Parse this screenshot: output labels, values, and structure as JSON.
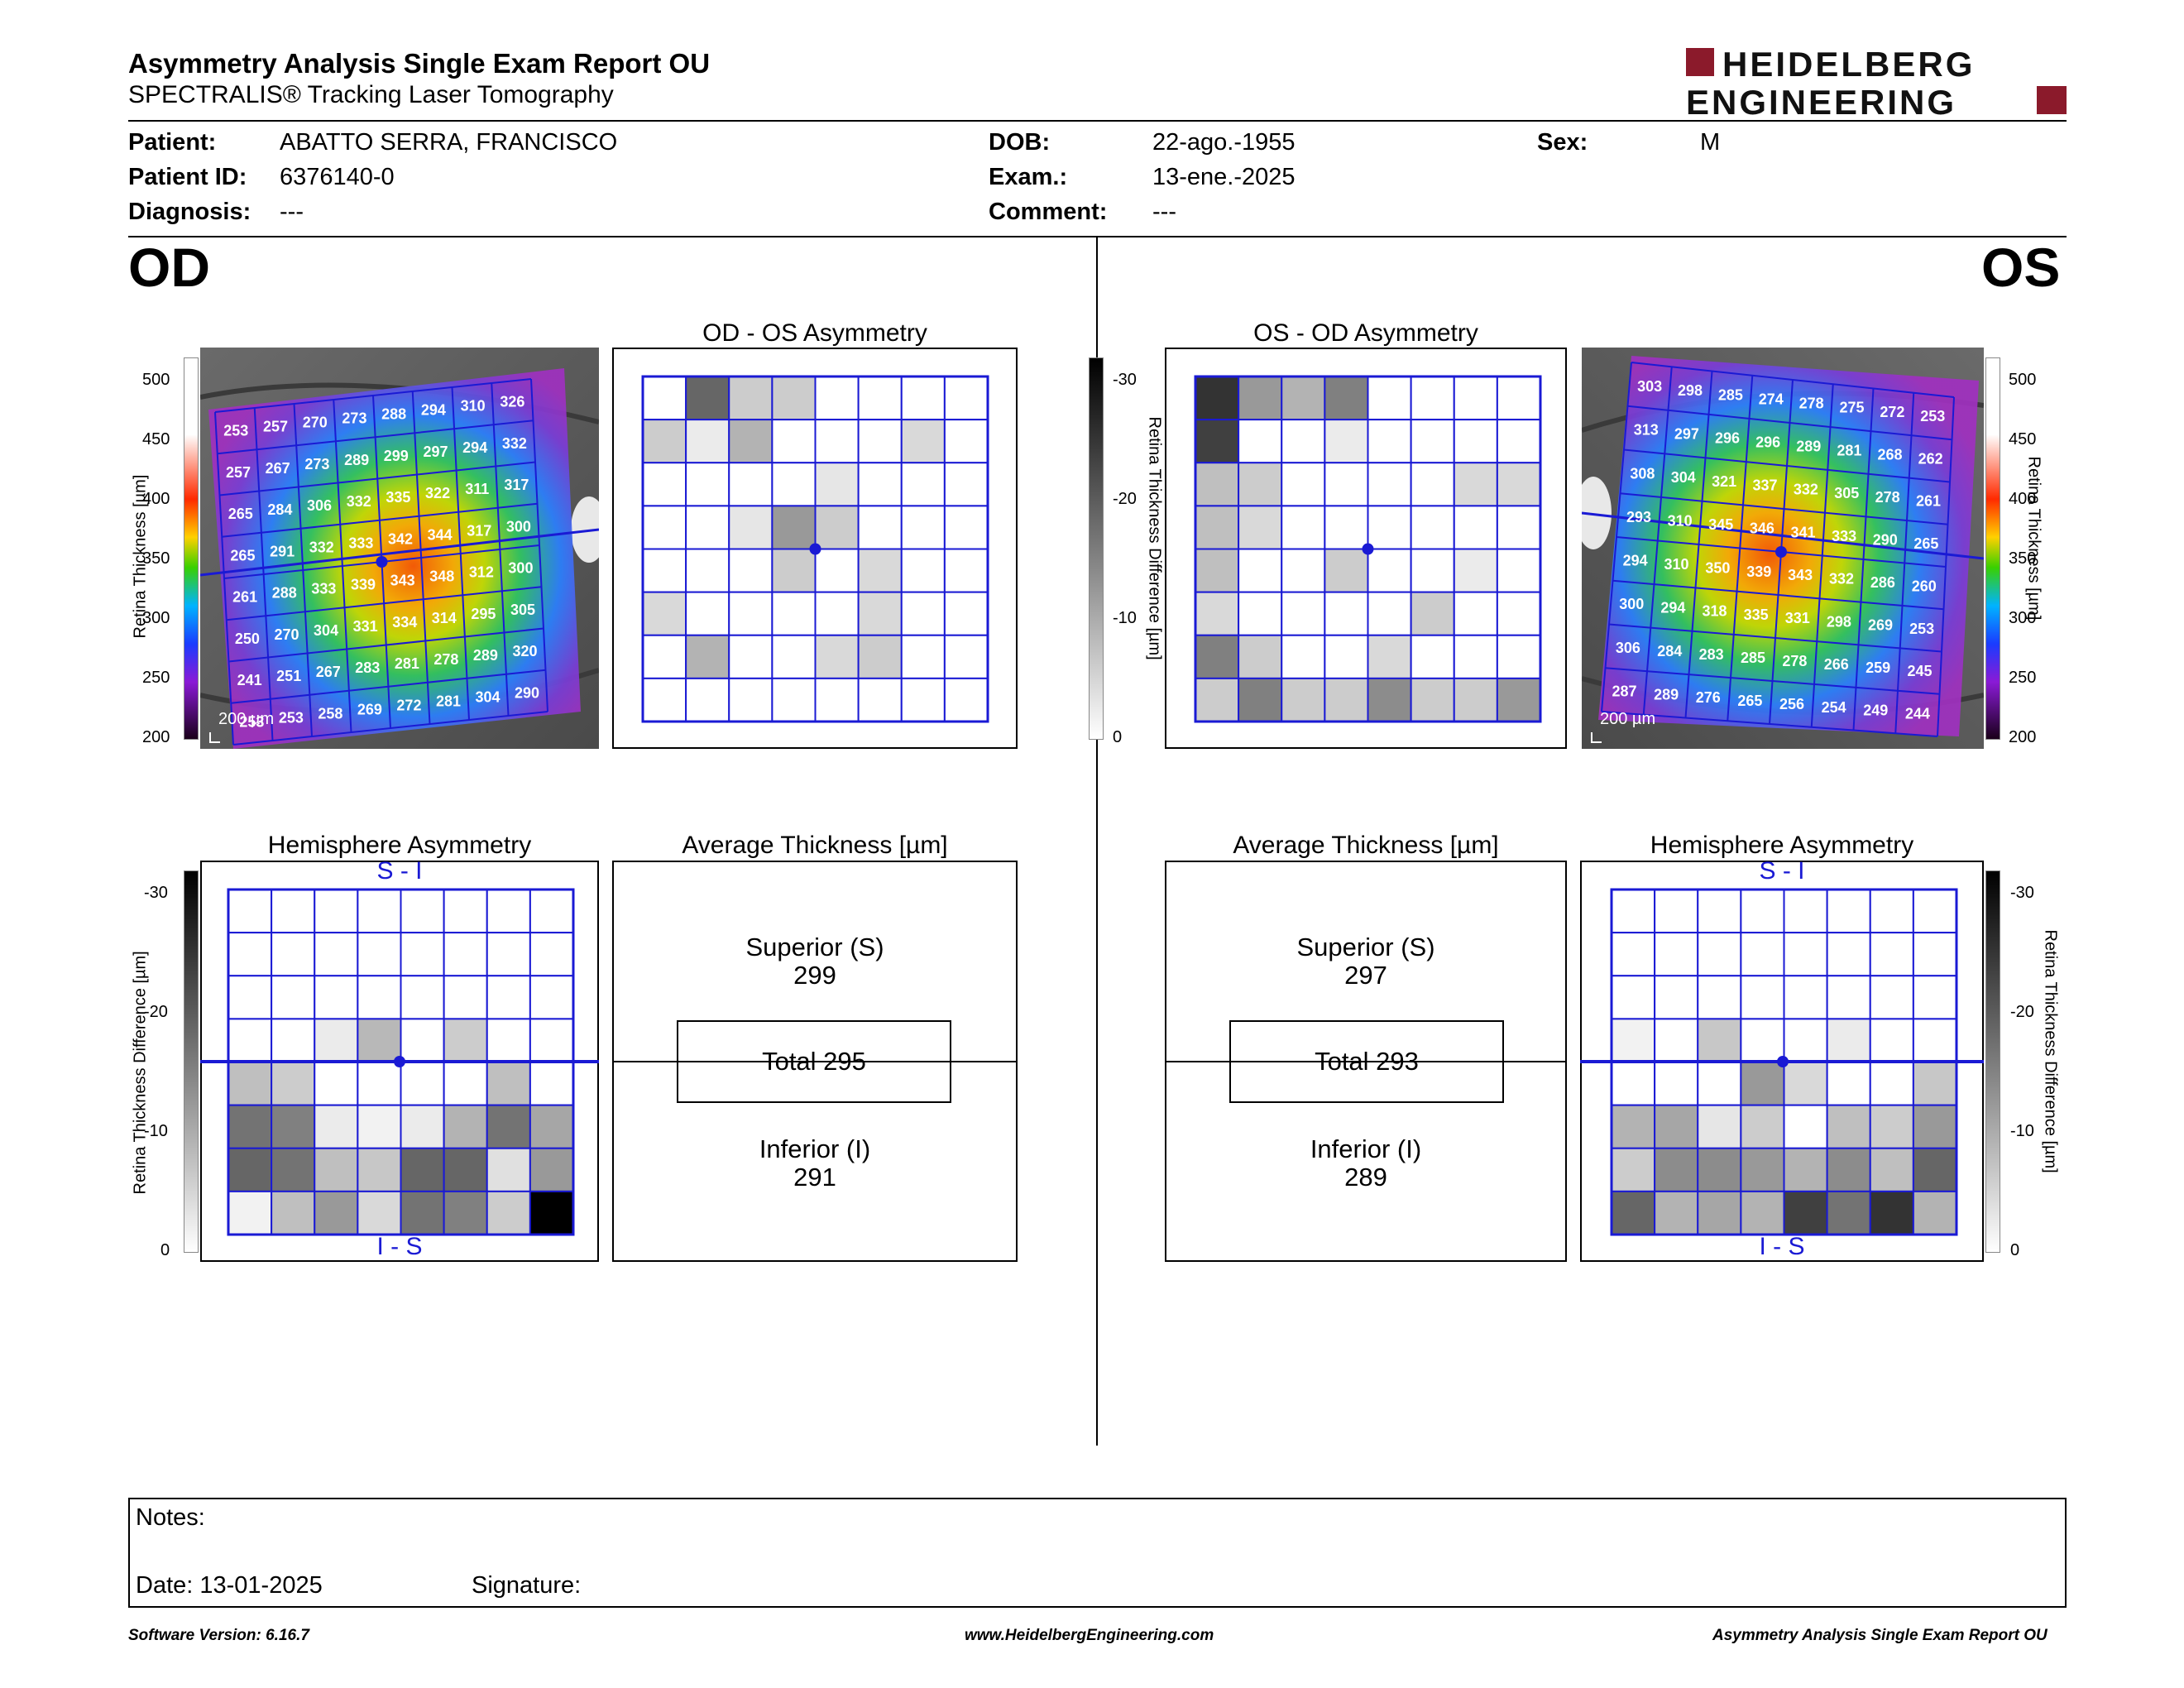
{
  "header": {
    "title": "Asymmetry Analysis Single Exam Report OU",
    "subtitle": "SPECTRALIS® Tracking Laser Tomography",
    "logo_line1": "HEIDELBERG",
    "logo_line2": "ENGINEERING"
  },
  "patient": {
    "patient_label": "Patient:",
    "patient_value": "ABATTO SERRA, FRANCISCO",
    "id_label": "Patient ID:",
    "id_value": "6376140-0",
    "diag_label": "Diagnosis:",
    "diag_value": "---",
    "dob_label": "DOB:",
    "dob_value": "22-ago.-1955",
    "exam_label": "Exam.:",
    "exam_value": "13-ene.-2025",
    "comment_label": "Comment:",
    "comment_value": "---",
    "sex_label": "Sex:",
    "sex_value": "M"
  },
  "od": {
    "eye": "OD",
    "asym_title": "OD - OS Asymmetry",
    "hemi_title": "Hemisphere Asymmetry",
    "avg_title": "Average Thickness [µm]",
    "superior_label": "Superior (S)",
    "superior_value": "299",
    "total": "Total 295",
    "inferior_label": "Inferior (I)",
    "inferior_value": "291",
    "scale_label": "200 µm",
    "thickness_grid": [
      [
        253,
        257,
        270,
        273,
        288,
        294,
        310,
        326
      ],
      [
        257,
        267,
        273,
        289,
        299,
        297,
        294,
        332
      ],
      [
        265,
        284,
        306,
        332,
        335,
        322,
        311,
        317
      ],
      [
        265,
        291,
        332,
        333,
        342,
        344,
        317,
        300
      ],
      [
        261,
        288,
        333,
        339,
        343,
        348,
        312,
        300
      ],
      [
        250,
        270,
        304,
        331,
        334,
        314,
        295,
        305
      ],
      [
        241,
        251,
        267,
        283,
        281,
        278,
        289,
        320
      ],
      [
        253,
        253,
        258,
        269,
        272,
        281,
        304,
        290
      ]
    ],
    "asym_shades": [
      [
        0,
        60,
        20,
        20,
        0,
        0,
        0,
        0
      ],
      [
        20,
        8,
        30,
        0,
        0,
        0,
        15,
        0
      ],
      [
        0,
        0,
        0,
        0,
        10,
        0,
        0,
        0
      ],
      [
        0,
        0,
        10,
        40,
        20,
        0,
        0,
        0
      ],
      [
        0,
        0,
        0,
        20,
        0,
        15,
        0,
        0
      ],
      [
        15,
        0,
        0,
        0,
        0,
        15,
        0,
        0
      ],
      [
        0,
        30,
        0,
        0,
        15,
        20,
        0,
        0
      ],
      [
        0,
        0,
        0,
        0,
        0,
        0,
        0,
        0
      ]
    ],
    "hemi_shades": [
      [
        0,
        0,
        0,
        0,
        0,
        0,
        0,
        0
      ],
      [
        0,
        0,
        0,
        0,
        0,
        0,
        0,
        0
      ],
      [
        0,
        0,
        0,
        0,
        0,
        0,
        0,
        0
      ],
      [
        0,
        0,
        8,
        28,
        0,
        20,
        0,
        0
      ],
      [
        25,
        20,
        0,
        0,
        0,
        0,
        25,
        0
      ],
      [
        55,
        50,
        8,
        5,
        8,
        30,
        55,
        35
      ],
      [
        60,
        55,
        25,
        22,
        60,
        60,
        12,
        40
      ],
      [
        5,
        25,
        40,
        15,
        55,
        50,
        20,
        100
      ]
    ]
  },
  "os": {
    "eye": "OS",
    "asym_title": "OS - OD Asymmetry",
    "hemi_title": "Hemisphere Asymmetry",
    "avg_title": "Average Thickness [µm]",
    "superior_label": "Superior (S)",
    "superior_value": "297",
    "total": "Total 293",
    "inferior_label": "Inferior (I)",
    "inferior_value": "289",
    "scale_label": "200 µm",
    "thickness_grid": [
      [
        303,
        298,
        285,
        274,
        278,
        275,
        272,
        253
      ],
      [
        313,
        297,
        296,
        296,
        289,
        281,
        268,
        262
      ],
      [
        308,
        304,
        321,
        337,
        332,
        305,
        278,
        261
      ],
      [
        293,
        310,
        345,
        346,
        341,
        333,
        290,
        265
      ],
      [
        294,
        310,
        350,
        339,
        343,
        332,
        286,
        260
      ],
      [
        300,
        294,
        318,
        335,
        331,
        298,
        269,
        253
      ],
      [
        306,
        284,
        283,
        285,
        278,
        266,
        259,
        245
      ],
      [
        287,
        289,
        276,
        265,
        256,
        254,
        249,
        244
      ]
    ],
    "asym_shades": [
      [
        80,
        40,
        30,
        50,
        0,
        0,
        0,
        0
      ],
      [
        75,
        0,
        0,
        8,
        0,
        0,
        0,
        0
      ],
      [
        25,
        20,
        0,
        0,
        0,
        0,
        15,
        15
      ],
      [
        25,
        15,
        0,
        0,
        0,
        0,
        0,
        0
      ],
      [
        25,
        0,
        0,
        20,
        0,
        0,
        8,
        0
      ],
      [
        15,
        0,
        0,
        0,
        0,
        20,
        0,
        0
      ],
      [
        50,
        20,
        0,
        0,
        15,
        0,
        0,
        0
      ],
      [
        20,
        50,
        20,
        20,
        45,
        20,
        20,
        40
      ]
    ],
    "hemi_shades": [
      [
        0,
        0,
        0,
        0,
        0,
        0,
        0,
        0
      ],
      [
        0,
        0,
        0,
        0,
        0,
        0,
        0,
        0
      ],
      [
        0,
        0,
        0,
        0,
        0,
        0,
        0,
        0
      ],
      [
        5,
        0,
        22,
        0,
        0,
        8,
        0,
        0
      ],
      [
        0,
        0,
        0,
        40,
        15,
        0,
        0,
        22
      ],
      [
        30,
        35,
        10,
        20,
        0,
        25,
        20,
        40
      ],
      [
        20,
        45,
        45,
        40,
        30,
        45,
        25,
        60
      ],
      [
        60,
        30,
        35,
        30,
        75,
        55,
        80,
        30
      ]
    ]
  },
  "thickness_scale": {
    "label": "Retina Thickness [µm]",
    "ticks": [
      "500",
      "450",
      "400",
      "350",
      "300",
      "250",
      "200"
    ]
  },
  "difference_scale": {
    "label": "Retina Thickness Difference [µm]",
    "ticks": [
      "-30",
      "-20",
      "-10",
      "0"
    ]
  },
  "hemi_labels": {
    "top": "S - I",
    "bottom": "I - S"
  },
  "notes": {
    "notes_label": "Notes:",
    "date_label": "Date: 13-01-2025",
    "signature_label": "Signature:"
  },
  "footer": {
    "version": "Software Version: 6.16.7",
    "website": "www.HeidelbergEngineering.com",
    "report_name": "Asymmetry Analysis Single Exam Report OU"
  },
  "colors": {
    "grid_blue": "#1a1ad4",
    "logo_red": "#8b1a2b"
  }
}
